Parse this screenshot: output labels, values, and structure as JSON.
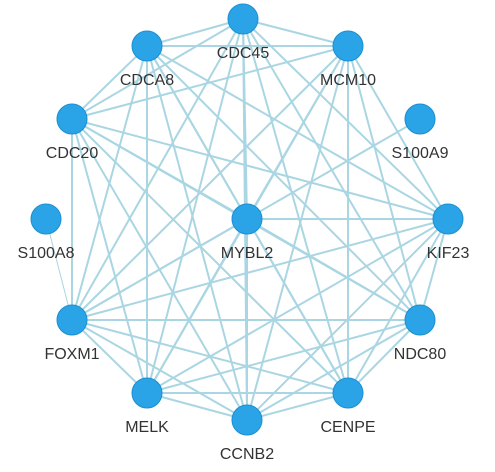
{
  "network": {
    "colors": {
      "node": "#2aa4e6",
      "edge": "#a9d6e2",
      "label": "#333333"
    },
    "nodes": [
      {
        "id": "CDC45",
        "label": "CDC45"
      },
      {
        "id": "CDCA8",
        "label": "CDCA8"
      },
      {
        "id": "MCM10",
        "label": "MCM10"
      },
      {
        "id": "CDC20",
        "label": "CDC20"
      },
      {
        "id": "S100A9",
        "label": "S100A9"
      },
      {
        "id": "S100A8",
        "label": "S100A8"
      },
      {
        "id": "MYBL2",
        "label": "MYBL2"
      },
      {
        "id": "KIF23",
        "label": "KIF23"
      },
      {
        "id": "FOXM1",
        "label": "FOXM1"
      },
      {
        "id": "NDC80",
        "label": "NDC80"
      },
      {
        "id": "MELK",
        "label": "MELK"
      },
      {
        "id": "CENPE",
        "label": "CENPE"
      },
      {
        "id": "CCNB2",
        "label": "CCNB2"
      }
    ],
    "edges": [
      [
        "CDC45",
        "CDCA8"
      ],
      [
        "CDC45",
        "MCM10"
      ],
      [
        "CDC45",
        "CDC20"
      ],
      [
        "CDC45",
        "MYBL2"
      ],
      [
        "CDC45",
        "KIF23"
      ],
      [
        "CDC45",
        "FOXM1"
      ],
      [
        "CDC45",
        "NDC80"
      ],
      [
        "CDC45",
        "MELK"
      ],
      [
        "CDC45",
        "CENPE"
      ],
      [
        "CDC45",
        "CCNB2"
      ],
      [
        "CDCA8",
        "MCM10"
      ],
      [
        "CDCA8",
        "CDC20"
      ],
      [
        "CDCA8",
        "MYBL2"
      ],
      [
        "CDCA8",
        "KIF23"
      ],
      [
        "CDCA8",
        "FOXM1"
      ],
      [
        "CDCA8",
        "NDC80"
      ],
      [
        "CDCA8",
        "MELK"
      ],
      [
        "CDCA8",
        "CENPE"
      ],
      [
        "CDCA8",
        "CCNB2"
      ],
      [
        "MCM10",
        "CDC20"
      ],
      [
        "MCM10",
        "MYBL2"
      ],
      [
        "MCM10",
        "KIF23"
      ],
      [
        "MCM10",
        "FOXM1"
      ],
      [
        "MCM10",
        "NDC80"
      ],
      [
        "MCM10",
        "MELK"
      ],
      [
        "MCM10",
        "CENPE"
      ],
      [
        "MCM10",
        "CCNB2"
      ],
      [
        "CDC20",
        "MYBL2"
      ],
      [
        "CDC20",
        "KIF23"
      ],
      [
        "CDC20",
        "FOXM1"
      ],
      [
        "CDC20",
        "NDC80"
      ],
      [
        "CDC20",
        "MELK"
      ],
      [
        "CDC20",
        "CENPE"
      ],
      [
        "CDC20",
        "CCNB2"
      ],
      [
        "S100A9",
        "FOXM1"
      ],
      [
        "S100A8",
        "FOXM1"
      ],
      [
        "MYBL2",
        "KIF23"
      ],
      [
        "MYBL2",
        "FOXM1"
      ],
      [
        "MYBL2",
        "NDC80"
      ],
      [
        "MYBL2",
        "MELK"
      ],
      [
        "MYBL2",
        "CENPE"
      ],
      [
        "MYBL2",
        "CCNB2"
      ],
      [
        "KIF23",
        "FOXM1"
      ],
      [
        "KIF23",
        "NDC80"
      ],
      [
        "KIF23",
        "MELK"
      ],
      [
        "KIF23",
        "CENPE"
      ],
      [
        "KIF23",
        "CCNB2"
      ],
      [
        "FOXM1",
        "NDC80"
      ],
      [
        "FOXM1",
        "MELK"
      ],
      [
        "FOXM1",
        "CENPE"
      ],
      [
        "FOXM1",
        "CCNB2"
      ],
      [
        "NDC80",
        "MELK"
      ],
      [
        "NDC80",
        "CENPE"
      ],
      [
        "NDC80",
        "CCNB2"
      ],
      [
        "MELK",
        "CENPE"
      ],
      [
        "MELK",
        "CCNB2"
      ],
      [
        "CENPE",
        "CCNB2"
      ]
    ],
    "thin_edges": [
      [
        "S100A8",
        "FOXM1"
      ]
    ]
  }
}
